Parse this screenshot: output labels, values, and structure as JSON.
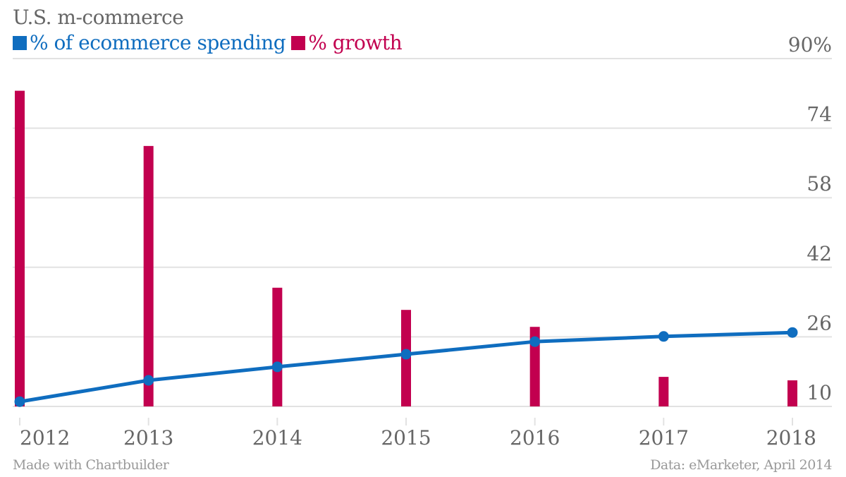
{
  "chart_data": {
    "type": "bar",
    "title": "U.S. m-commerce",
    "categories": [
      "2012",
      "2013",
      "2014",
      "2015",
      "2016",
      "2017",
      "2018"
    ],
    "series": [
      {
        "name": "% of ecommerce spending",
        "type": "line",
        "color": "#0f6dbf",
        "values": [
          11.1,
          16.0,
          19.1,
          22.0,
          24.9,
          26.1,
          27.0
        ]
      },
      {
        "name": "% growth",
        "type": "bar",
        "color": "#c2004f",
        "values": [
          82.6,
          69.9,
          37.3,
          32.2,
          28.3,
          16.8,
          16.0
        ]
      }
    ],
    "yticks": [
      "90%",
      "74",
      "58",
      "42",
      "26",
      "10"
    ],
    "ytick_values": [
      90,
      74,
      58,
      42,
      26,
      10
    ],
    "ylim": [
      10,
      90
    ],
    "xlabel": "",
    "ylabel": "",
    "grid": true,
    "legend_position": "top-left",
    "source": "Data: eMarketer, April 2014",
    "credit": "Made with Chartbuilder"
  },
  "colors": {
    "line": "#0f6dbf",
    "bar": "#c2004f",
    "grid": "#e2e2e2",
    "text": "#666666",
    "muted": "#999999"
  }
}
